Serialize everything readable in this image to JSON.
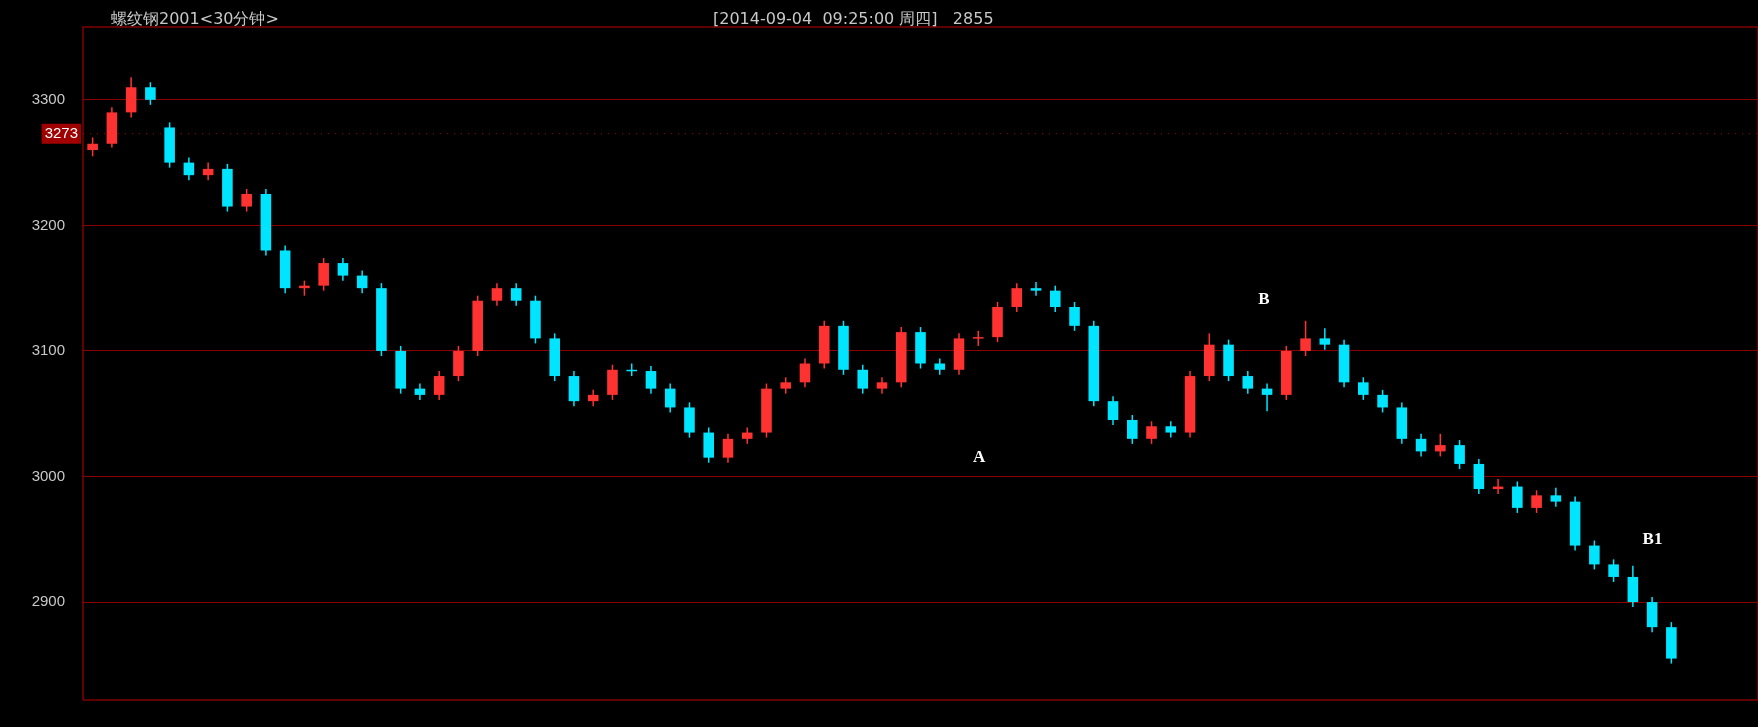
{
  "chart_data": {
    "type": "candlestick",
    "title": "螺纹钢2001<30分钟>",
    "subtitle": "[2014-09-04  09:25:00 周四]   2855",
    "categories": [
      null,
      null,
      null,
      null,
      null,
      null,
      null,
      null,
      null,
      null,
      null,
      null,
      null,
      null,
      null,
      null,
      null,
      null,
      null,
      null,
      null,
      null,
      null,
      null,
      null,
      null,
      null,
      null,
      null,
      null,
      null,
      null,
      null,
      null,
      null,
      null,
      null,
      null,
      null,
      null,
      null,
      null,
      null,
      null,
      null,
      null,
      null,
      null,
      null,
      null,
      null,
      null,
      null,
      null,
      null,
      null,
      null,
      null,
      null,
      null,
      null,
      null,
      null,
      null,
      null,
      null,
      null,
      null,
      null,
      null,
      null,
      null,
      null,
      null,
      null,
      null,
      null,
      null,
      null,
      null,
      null,
      null,
      null,
      null,
      null,
      null,
      null
    ],
    "ohlc": [
      [
        3260,
        3270,
        3255,
        3265
      ],
      [
        3265,
        3294,
        3262,
        3290
      ],
      [
        3290,
        3318,
        3286,
        3310
      ],
      [
        3310,
        3314,
        3296,
        3300
      ],
      [
        3278,
        3282,
        3246,
        3250
      ],
      [
        3250,
        3254,
        3236,
        3240
      ],
      [
        3240,
        3250,
        3236,
        3245
      ],
      [
        3245,
        3249,
        3211,
        3215
      ],
      [
        3215,
        3229,
        3211,
        3225
      ],
      [
        3225,
        3229,
        3176,
        3180
      ],
      [
        3180,
        3184,
        3146,
        3150
      ],
      [
        3150,
        3156,
        3144,
        3152
      ],
      [
        3152,
        3174,
        3148,
        3170
      ],
      [
        3170,
        3174,
        3156,
        3160
      ],
      [
        3160,
        3164,
        3146,
        3150
      ],
      [
        3150,
        3154,
        3096,
        3100
      ],
      [
        3100,
        3104,
        3066,
        3070
      ],
      [
        3070,
        3074,
        3061,
        3065
      ],
      [
        3065,
        3084,
        3061,
        3080
      ],
      [
        3080,
        3104,
        3076,
        3100
      ],
      [
        3100,
        3144,
        3096,
        3140
      ],
      [
        3140,
        3154,
        3136,
        3150
      ],
      [
        3150,
        3154,
        3136,
        3140
      ],
      [
        3140,
        3144,
        3106,
        3110
      ],
      [
        3110,
        3114,
        3076,
        3080
      ],
      [
        3080,
        3084,
        3056,
        3060
      ],
      [
        3060,
        3069,
        3056,
        3065
      ],
      [
        3065,
        3089,
        3061,
        3085
      ],
      [
        3085,
        3090,
        3080,
        3084
      ],
      [
        3084,
        3088,
        3066,
        3070
      ],
      [
        3070,
        3074,
        3051,
        3055
      ],
      [
        3055,
        3059,
        3031,
        3035
      ],
      [
        3035,
        3039,
        3011,
        3015
      ],
      [
        3015,
        3034,
        3011,
        3030
      ],
      [
        3030,
        3039,
        3026,
        3035
      ],
      [
        3035,
        3074,
        3031,
        3070
      ],
      [
        3070,
        3079,
        3066,
        3075
      ],
      [
        3075,
        3094,
        3071,
        3090
      ],
      [
        3090,
        3124,
        3086,
        3120
      ],
      [
        3120,
        3124,
        3081,
        3085
      ],
      [
        3085,
        3089,
        3066,
        3070
      ],
      [
        3070,
        3079,
        3066,
        3075
      ],
      [
        3075,
        3119,
        3071,
        3115
      ],
      [
        3115,
        3119,
        3086,
        3090
      ],
      [
        3090,
        3094,
        3081,
        3085
      ],
      [
        3085,
        3114,
        3081,
        3110
      ],
      [
        3110,
        3116,
        3104,
        3111
      ],
      [
        3111,
        3139,
        3107,
        3135
      ],
      [
        3135,
        3154,
        3131,
        3150
      ],
      [
        3150,
        3155,
        3144,
        3148
      ],
      [
        3148,
        3152,
        3131,
        3135
      ],
      [
        3135,
        3139,
        3116,
        3120
      ],
      [
        3120,
        3124,
        3056,
        3060
      ],
      [
        3060,
        3064,
        3041,
        3045
      ],
      [
        3045,
        3049,
        3026,
        3030
      ],
      [
        3030,
        3044,
        3026,
        3040
      ],
      [
        3040,
        3044,
        3031,
        3035
      ],
      [
        3035,
        3084,
        3031,
        3080
      ],
      [
        3080,
        3114,
        3076,
        3105
      ],
      [
        3105,
        3109,
        3076,
        3080
      ],
      [
        3080,
        3084,
        3066,
        3070
      ],
      [
        3070,
        3074,
        3052,
        3065
      ],
      [
        3065,
        3104,
        3061,
        3100
      ],
      [
        3100,
        3124,
        3096,
        3110
      ],
      [
        3110,
        3118,
        3101,
        3105
      ],
      [
        3105,
        3109,
        3071,
        3075
      ],
      [
        3075,
        3079,
        3061,
        3065
      ],
      [
        3065,
        3069,
        3051,
        3055
      ],
      [
        3055,
        3059,
        3026,
        3030
      ],
      [
        3030,
        3034,
        3016,
        3020
      ],
      [
        3020,
        3034,
        3016,
        3025
      ],
      [
        3025,
        3029,
        3006,
        3010
      ],
      [
        3010,
        3014,
        2986,
        2990
      ],
      [
        2990,
        2998,
        2986,
        2992
      ],
      [
        2992,
        2996,
        2971,
        2975
      ],
      [
        2975,
        2989,
        2971,
        2985
      ],
      [
        2985,
        2991,
        2976,
        2980
      ],
      [
        2980,
        2984,
        2941,
        2945
      ],
      [
        2945,
        2949,
        2926,
        2930
      ],
      [
        2930,
        2934,
        2916,
        2920
      ],
      [
        2920,
        2929,
        2896,
        2900
      ],
      [
        2900,
        2904,
        2876,
        2880
      ],
      [
        2880,
        2884,
        2851,
        2855
      ],
      null,
      null,
      null,
      null
    ],
    "colors": [
      "#ff3232",
      "#ff3232",
      "#ff3232",
      "#00e5ff",
      "#00e5ff",
      "#00e5ff",
      "#ff3232",
      "#00e5ff",
      "#ff3232",
      "#00e5ff",
      "#00e5ff",
      "#ff3232",
      "#ff3232",
      "#00e5ff",
      "#00e5ff",
      "#00e5ff",
      "#00e5ff",
      "#00e5ff",
      "#ff3232",
      "#ff3232",
      "#ff3232",
      "#ff3232",
      "#00e5ff",
      "#00e5ff",
      "#00e5ff",
      "#00e5ff",
      "#ff3232",
      "#ff3232",
      "#00e5ff",
      "#00e5ff",
      "#00e5ff",
      "#00e5ff",
      "#00e5ff",
      "#ff3232",
      "#ff3232",
      "#ff3232",
      "#ff3232",
      "#ff3232",
      "#ff3232",
      "#00e5ff",
      "#00e5ff",
      "#ff3232",
      "#ff3232",
      "#00e5ff",
      "#00e5ff",
      "#ff3232",
      "#ff3232",
      "#ff3232",
      "#ff3232",
      "#00e5ff",
      "#00e5ff",
      "#00e5ff",
      "#00e5ff",
      "#00e5ff",
      "#00e5ff",
      "#ff3232",
      "#00e5ff",
      "#ff3232",
      "#ff3232",
      "#00e5ff",
      "#00e5ff",
      "#00e5ff",
      "#ff3232",
      "#ff3232",
      "#00e5ff",
      "#00e5ff",
      "#00e5ff",
      "#00e5ff",
      "#00e5ff",
      "#00e5ff",
      "#ff3232",
      "#00e5ff",
      "#00e5ff",
      "#ff3232",
      "#00e5ff",
      "#ff3232",
      "#00e5ff",
      "#00e5ff",
      "#00e5ff",
      "#00e5ff",
      "#00e5ff",
      "#00e5ff",
      "#00e5ff",
      null,
      null,
      null,
      null
    ],
    "ylim": [
      2822,
      3358
    ],
    "yticks": [
      2900,
      3000,
      3100,
      3200,
      3300
    ],
    "grid": "y",
    "ref_lines": [
      {
        "axis": "y",
        "value": 3273,
        "label": "3273",
        "color": "#a00000"
      }
    ],
    "annotations": [
      "A",
      "B",
      "B1"
    ]
  }
}
